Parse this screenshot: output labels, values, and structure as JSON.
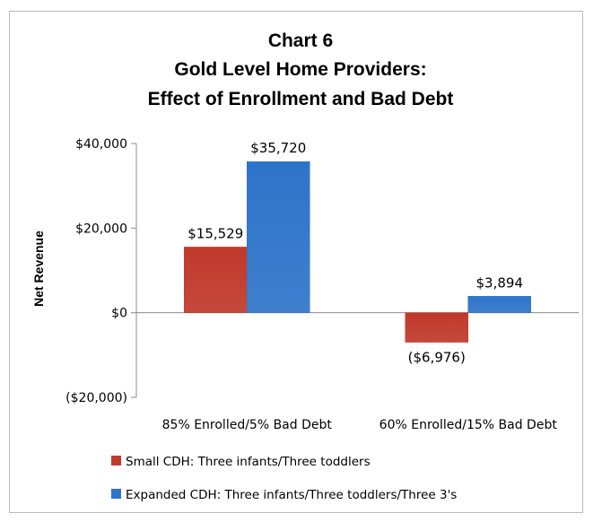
{
  "chart_data": {
    "type": "bar",
    "title": [
      "Chart 6",
      "Gold Level Home Providers:",
      "Effect of Enrollment and Bad Debt"
    ],
    "ylabel": "Net Revenue",
    "xlabel": "",
    "categories": [
      "85% Enrolled/5% Bad Debt",
      "60% Enrolled/15% Bad Debt"
    ],
    "series": [
      {
        "name": "Small CDH: Three infants/Three toddlers",
        "values": [
          15529,
          -6976
        ],
        "labels": [
          "$15,529",
          "($6,976)"
        ],
        "color": "#c0392b"
      },
      {
        "name": "Expanded CDH: Three infants/Three toddlers/Three 3's",
        "values": [
          35720,
          3894
        ],
        "labels": [
          "$35,720",
          "$3,894"
        ],
        "color": "#2e74c9"
      }
    ],
    "ylim": [
      -20000,
      40000
    ],
    "yticks": [
      40000,
      20000,
      0,
      -20000
    ],
    "ytick_labels": [
      "$40,000",
      "$20,000",
      "$0",
      "($20,000)"
    ],
    "negative_label_color": "#ff0000",
    "grid": false,
    "legend_position": "bottom"
  }
}
